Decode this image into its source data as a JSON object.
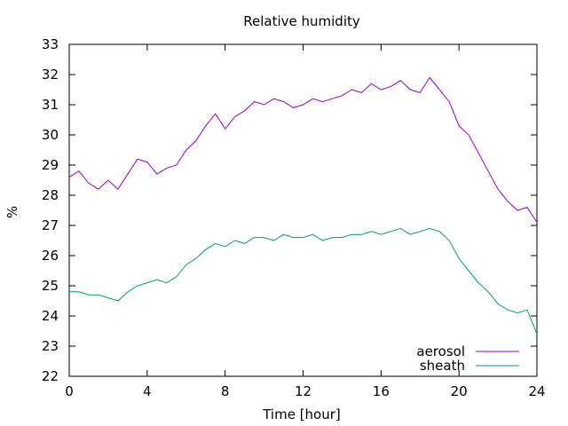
{
  "chart_data": {
    "type": "line",
    "title": "Relative humidity",
    "xlabel": "Time [hour]",
    "ylabel": "%",
    "xlim": [
      0,
      24
    ],
    "ylim": [
      22,
      33
    ],
    "xticks": [
      "0",
      "4",
      "8",
      "12",
      "16",
      "20",
      "24"
    ],
    "yticks": [
      "22",
      "23",
      "24",
      "25",
      "26",
      "27",
      "28",
      "29",
      "30",
      "31",
      "32",
      "33"
    ],
    "grid": false,
    "legend_position": "bottom-right",
    "x": [
      0,
      0.5,
      1,
      1.5,
      2,
      2.5,
      3,
      3.5,
      4,
      4.5,
      5,
      5.5,
      6,
      6.5,
      7,
      7.5,
      8,
      8.5,
      9,
      9.5,
      10,
      10.5,
      11,
      11.5,
      12,
      12.5,
      13,
      13.5,
      14,
      14.5,
      15,
      15.5,
      16,
      16.5,
      17,
      17.5,
      18,
      18.5,
      19,
      19.5,
      20,
      20.5,
      21,
      21.5,
      22,
      22.5,
      23,
      23.5,
      24
    ],
    "series": [
      {
        "name": "aerosol",
        "color": "#9400d3",
        "values": [
          28.6,
          28.8,
          28.4,
          28.2,
          28.5,
          28.2,
          28.7,
          29.2,
          29.1,
          28.7,
          28.9,
          29.0,
          29.5,
          29.8,
          30.3,
          30.7,
          30.2,
          30.6,
          30.8,
          31.1,
          31.0,
          31.2,
          31.1,
          30.9,
          31.0,
          31.2,
          31.1,
          31.2,
          31.3,
          31.5,
          31.4,
          31.7,
          31.5,
          31.6,
          31.8,
          31.5,
          31.4,
          31.9,
          31.5,
          31.1,
          30.3,
          30.0,
          29.4,
          28.8,
          28.2,
          27.8,
          27.5,
          27.6,
          27.1
        ]
      },
      {
        "name": "sheath",
        "color": "#009e73",
        "values": [
          24.8,
          24.8,
          24.7,
          24.7,
          24.6,
          24.5,
          24.8,
          25.0,
          25.1,
          25.2,
          25.1,
          25.3,
          25.7,
          25.9,
          26.2,
          26.4,
          26.3,
          26.5,
          26.4,
          26.6,
          26.6,
          26.5,
          26.7,
          26.6,
          26.6,
          26.7,
          26.5,
          26.6,
          26.6,
          26.7,
          26.7,
          26.8,
          26.7,
          26.8,
          26.9,
          26.7,
          26.8,
          26.9,
          26.8,
          26.5,
          25.9,
          25.5,
          25.1,
          24.8,
          24.4,
          24.2,
          24.1,
          24.2,
          23.4
        ]
      }
    ]
  }
}
